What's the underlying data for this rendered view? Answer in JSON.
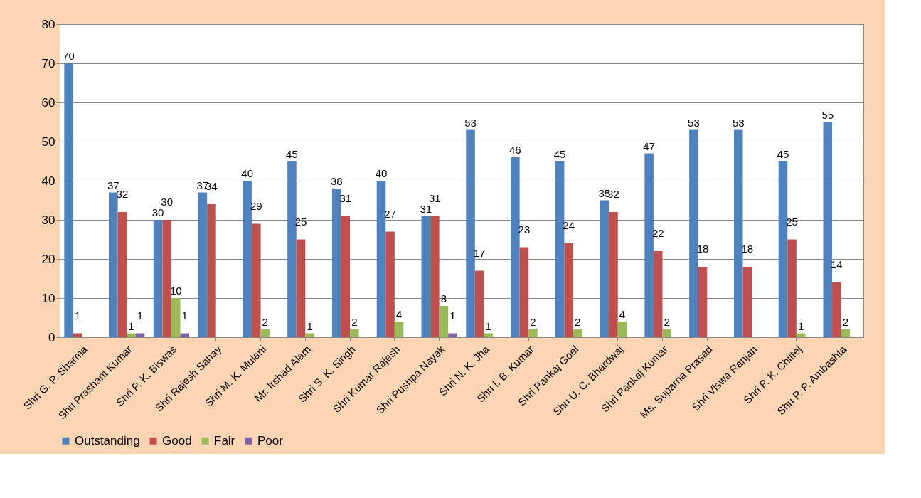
{
  "chart_data": {
    "type": "bar",
    "categories": [
      "Shri G. P. Sharma",
      "Shri Prashant Kumar",
      "Shri P. K. Biswas",
      "Shri Rajesh Sahay",
      "Shri M. K. Mulani",
      "Mr. Irshad Alam",
      "Shri S. K. Singh",
      "Shri Kumar Rajesh",
      "Shri Pushpa Nayak",
      "Shri N. K. Jha",
      "Shri I. B. Kumar",
      "Shri Pankaj Goel",
      "Shri U. C. Bhardwaj",
      "Shri Pankaj Kumar",
      "Ms. Suparna Prasad",
      "Shri Viswa Ranjan",
      "Shri P. K. Chittej",
      "Shri P. P. Ambashta"
    ],
    "series": [
      {
        "name": "Outstanding",
        "color": "#4f81bd",
        "values": [
          70,
          37,
          30,
          37,
          40,
          45,
          38,
          40,
          31,
          53,
          46,
          45,
          35,
          47,
          53,
          53,
          45,
          55
        ]
      },
      {
        "name": "Good",
        "color": "#c0504d",
        "values": [
          1,
          32,
          30,
          34,
          29,
          25,
          31,
          27,
          31,
          17,
          23,
          24,
          32,
          22,
          18,
          18,
          25,
          14
        ]
      },
      {
        "name": "Fair",
        "color": "#9bbb59",
        "values": [
          null,
          1,
          10,
          null,
          2,
          1,
          2,
          4,
          8,
          1,
          2,
          2,
          4,
          2,
          null,
          null,
          1,
          2
        ]
      },
      {
        "name": "Poor",
        "color": "#8064a2",
        "values": [
          null,
          1,
          1,
          null,
          null,
          null,
          null,
          null,
          1,
          null,
          null,
          null,
          null,
          null,
          null,
          null,
          null,
          null
        ]
      }
    ],
    "ylim": [
      0,
      80
    ],
    "yticks": [
      0,
      10,
      20,
      30,
      40,
      50,
      60,
      70,
      80
    ],
    "grid": "y",
    "legend": "bottom",
    "data_labels": true
  }
}
